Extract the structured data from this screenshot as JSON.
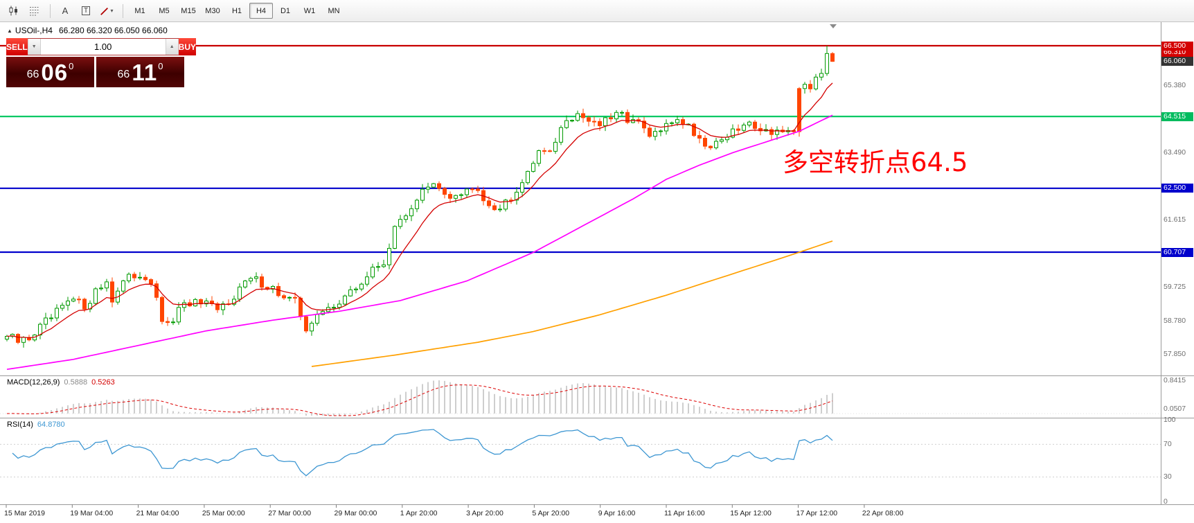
{
  "toolbar": {
    "text_tool_glyph": "A",
    "textbox_tool_glyph": "T",
    "draw_caret_glyph": "▾",
    "timeframes": [
      "M1",
      "M5",
      "M15",
      "M30",
      "H1",
      "H4",
      "D1",
      "W1",
      "MN"
    ],
    "selected_timeframe": "H4"
  },
  "header": {
    "collapse_glyph": "▲",
    "symbol": "USOil-,H4",
    "ohlc": "66.280 66.320 66.050 66.060"
  },
  "trade_panel": {
    "sell_label": "SELL",
    "buy_label": "BUY",
    "volume": "1.00",
    "vol_down_glyph": "▼",
    "vol_up_glyph": "▲",
    "bid_prefix": "66",
    "bid_big": "06",
    "bid_sup": "0",
    "ask_prefix": "66",
    "ask_big": "11",
    "ask_sup": "0"
  },
  "annotation": {
    "text": "多空转折点64.5",
    "color": "#ff0000"
  },
  "price_axis": {
    "labels": [
      {
        "text": "66.310",
        "price": 66.31,
        "style": "red-box"
      },
      {
        "text": "66.500",
        "price": 66.5,
        "style": "red-box"
      },
      {
        "text": "66.060",
        "price": 66.06,
        "style": "dark-box"
      },
      {
        "text": "65.380",
        "price": 65.38,
        "style": "plain"
      },
      {
        "text": "64.515",
        "price": 64.515,
        "style": "green-box"
      },
      {
        "text": "63.490",
        "price": 63.49,
        "style": "plain"
      },
      {
        "text": "62.500",
        "price": 62.5,
        "style": "blue-box"
      },
      {
        "text": "61.615",
        "price": 61.615,
        "style": "plain"
      },
      {
        "text": "60.707",
        "price": 60.707,
        "style": "blue-box"
      },
      {
        "text": "59.725",
        "price": 59.725,
        "style": "plain"
      },
      {
        "text": "58.780",
        "price": 58.78,
        "style": "plain"
      },
      {
        "text": "57.850",
        "price": 57.85,
        "style": "plain"
      }
    ]
  },
  "macd_panel": {
    "label": "MACD(12,26,9)",
    "value_main": "0.5888",
    "value_signal": "0.5263",
    "axis_max": "0.8415",
    "axis_min": "0.0507"
  },
  "rsi_panel": {
    "label": "RSI(14)",
    "value": "64.8780",
    "levels": [
      "100",
      "70",
      "30",
      "0"
    ]
  },
  "time_axis": {
    "labels": [
      "15 Mar 2019",
      "19 Mar 04:00",
      "21 Mar 04:00",
      "25 Mar 00:00",
      "27 Mar 00:00",
      "29 Mar 00:00",
      "1 Apr 20:00",
      "3 Apr 20:00",
      "5 Apr 20:00",
      "9 Apr 16:00",
      "11 Apr 16:00",
      "15 Apr 12:00",
      "17 Apr 12:00",
      "22 Apr 08:00"
    ]
  },
  "chart_data": {
    "type": "candlestick",
    "symbol": "USOil",
    "timeframe": "H4",
    "bars": 150,
    "y_range": [
      57.4,
      67.0
    ],
    "current_ohlc": {
      "open": 66.28,
      "high": 66.32,
      "low": 66.05,
      "close": 66.06
    },
    "hlines": [
      {
        "price": 66.5,
        "color": "#c80000"
      },
      {
        "price": 64.515,
        "color": "#00c864"
      },
      {
        "price": 62.5,
        "color": "#0000cc"
      },
      {
        "price": 60.707,
        "color": "#0000cc"
      }
    ],
    "close_anchors": [
      [
        0,
        58.35
      ],
      [
        2,
        58.18
      ],
      [
        4,
        58.3
      ],
      [
        6,
        58.6
      ],
      [
        8,
        58.85
      ],
      [
        10,
        59.15
      ],
      [
        12,
        59.35
      ],
      [
        14,
        59.2
      ],
      [
        16,
        59.6
      ],
      [
        18,
        59.9
      ],
      [
        19,
        59.4
      ],
      [
        21,
        59.85
      ],
      [
        23,
        60.05
      ],
      [
        24,
        60.1
      ],
      [
        26,
        59.9
      ],
      [
        27,
        59.3
      ],
      [
        28,
        58.8
      ],
      [
        29,
        58.6
      ],
      [
        31,
        59.05
      ],
      [
        33,
        59.3
      ],
      [
        36,
        59.2
      ],
      [
        38,
        59.05
      ],
      [
        40,
        59.35
      ],
      [
        42,
        59.7
      ],
      [
        44,
        59.95
      ],
      [
        46,
        59.85
      ],
      [
        48,
        59.7
      ],
      [
        50,
        59.4
      ],
      [
        52,
        59.3
      ],
      [
        53,
        58.95
      ],
      [
        54,
        58.6
      ],
      [
        55,
        58.75
      ],
      [
        57,
        59.0
      ],
      [
        59,
        59.25
      ],
      [
        60,
        59.35
      ],
      [
        62,
        59.55
      ],
      [
        64,
        59.85
      ],
      [
        66,
        60.2
      ],
      [
        68,
        60.45
      ],
      [
        69,
        60.9
      ],
      [
        70,
        61.3
      ],
      [
        71,
        61.6
      ],
      [
        73,
        62.0
      ],
      [
        75,
        62.4
      ],
      [
        77,
        62.55
      ],
      [
        79,
        62.35
      ],
      [
        81,
        62.25
      ],
      [
        83,
        62.4
      ],
      [
        85,
        62.45
      ],
      [
        87,
        62.1
      ],
      [
        89,
        61.95
      ],
      [
        91,
        62.3
      ],
      [
        93,
        62.75
      ],
      [
        95,
        63.3
      ],
      [
        97,
        63.55
      ],
      [
        99,
        63.8
      ],
      [
        100,
        64.1
      ],
      [
        101,
        64.4
      ],
      [
        103,
        64.6
      ],
      [
        105,
        64.45
      ],
      [
        107,
        64.3
      ],
      [
        109,
        64.45
      ],
      [
        111,
        64.55
      ],
      [
        113,
        64.4
      ],
      [
        115,
        64.15
      ],
      [
        116,
        63.9
      ],
      [
        117,
        64.05
      ],
      [
        119,
        64.2
      ],
      [
        121,
        64.5
      ],
      [
        123,
        64.25
      ],
      [
        125,
        63.9
      ],
      [
        127,
        63.68
      ],
      [
        129,
        63.92
      ],
      [
        131,
        64.05
      ],
      [
        133,
        64.25
      ],
      [
        135,
        64.3
      ],
      [
        137,
        64.1
      ],
      [
        139,
        64.15
      ],
      [
        141,
        64.0
      ],
      [
        142,
        63.95
      ],
      [
        143,
        65.3
      ],
      [
        144,
        65.42
      ],
      [
        145,
        65.32
      ],
      [
        146,
        65.58
      ],
      [
        147,
        65.72
      ],
      [
        148,
        66.28
      ],
      [
        149,
        66.06
      ]
    ],
    "ma_magenta_anchors": [
      [
        0,
        57.42
      ],
      [
        12,
        57.7
      ],
      [
        24,
        58.1
      ],
      [
        36,
        58.5
      ],
      [
        48,
        58.8
      ],
      [
        60,
        59.05
      ],
      [
        71,
        59.35
      ],
      [
        83,
        59.9
      ],
      [
        95,
        60.7
      ],
      [
        107,
        61.7
      ],
      [
        113,
        62.2
      ],
      [
        119,
        62.75
      ],
      [
        125,
        63.15
      ],
      [
        131,
        63.5
      ],
      [
        137,
        63.8
      ],
      [
        143,
        64.1
      ],
      [
        149,
        64.55
      ]
    ],
    "ma_orange_anchors": [
      [
        55,
        57.5
      ],
      [
        70,
        57.82
      ],
      [
        85,
        58.18
      ],
      [
        95,
        58.48
      ],
      [
        107,
        58.95
      ],
      [
        119,
        59.5
      ],
      [
        131,
        60.1
      ],
      [
        140,
        60.55
      ],
      [
        149,
        61.02
      ]
    ],
    "indicators": [
      {
        "name": "MACD",
        "params": [
          12,
          26,
          9
        ],
        "current": [
          0.5888,
          0.5263
        ]
      },
      {
        "name": "RSI",
        "params": [
          14
        ],
        "current": 64.878
      }
    ]
  },
  "colors": {
    "up": "#009a00",
    "up_fill": "#ffffff",
    "down": "#ff4500",
    "ma_fast": "#d40000",
    "ma_mid": "#ff00ff",
    "ma_slow": "#ffa000",
    "macd_hist": "#b8b8b8",
    "macd_signal": "#dd0000",
    "rsi_line": "#3c96d2",
    "hline_red": "#c80000",
    "hline_green": "#00c864",
    "hline_blue": "#0000cc"
  }
}
